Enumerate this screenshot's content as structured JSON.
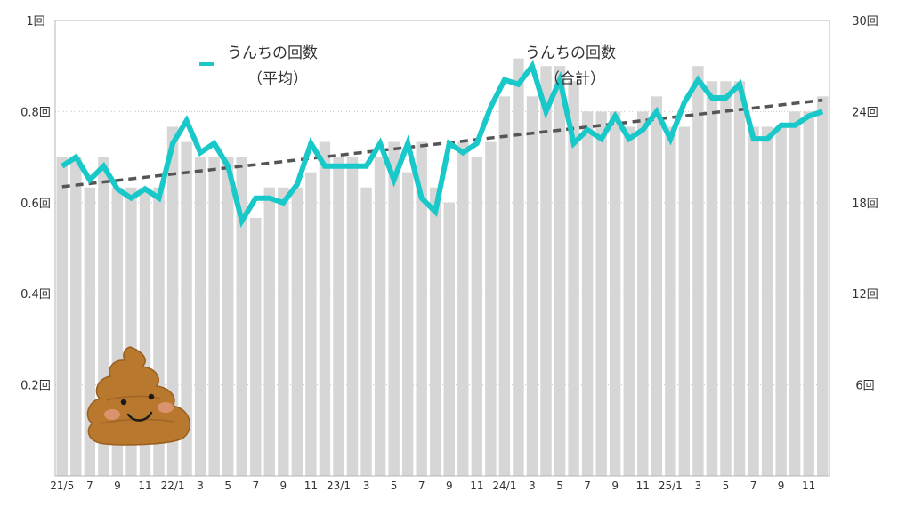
{
  "chart_data": {
    "type": "bar",
    "categories": [
      "21/5",
      "6",
      "7",
      "8",
      "9",
      "10",
      "11",
      "12",
      "22/1",
      "2",
      "3",
      "4",
      "5",
      "6",
      "7",
      "8",
      "9",
      "10",
      "11",
      "12",
      "23/1",
      "2",
      "3",
      "4",
      "5",
      "6",
      "7",
      "8",
      "9",
      "10",
      "11",
      "12",
      "24/1",
      "2",
      "3",
      "4",
      "5",
      "6",
      "7",
      "8",
      "9",
      "10",
      "11",
      "12",
      "25/1",
      "2",
      "3",
      "4",
      "5",
      "6",
      "7",
      "8",
      "9",
      "10",
      "11",
      "12"
    ],
    "x_tick_labels": [
      "21/5",
      "7",
      "9",
      "11",
      "22/1",
      "3",
      "5",
      "7",
      "9",
      "11",
      "23/1",
      "3",
      "5",
      "7",
      "9",
      "11",
      "24/1",
      "3",
      "5",
      "7",
      "9",
      "11",
      "25/1",
      "3",
      "5",
      "7",
      "9",
      "11"
    ],
    "y_left_ticks": [
      "0.2回",
      "0.4回",
      "0.6回",
      "0.8回",
      "1回"
    ],
    "y_right_ticks": [
      "6回",
      "12回",
      "18回",
      "24回",
      "30回"
    ],
    "ylim_left": [
      0,
      1
    ],
    "ylim_right": [
      0,
      30
    ],
    "series": [
      {
        "name": "うんちの回数（合計）",
        "axis": "right",
        "type": "bar",
        "color": "#d6d6d6",
        "values": [
          21,
          21,
          19,
          21,
          19,
          19,
          19,
          19,
          23,
          22,
          21,
          21,
          21,
          21,
          17,
          19,
          19,
          19,
          20,
          22,
          21,
          21,
          19,
          21,
          22,
          20,
          22,
          19,
          18,
          22,
          21,
          22,
          25,
          27.5,
          25,
          27,
          27,
          26,
          24,
          24,
          24,
          23,
          24,
          25,
          23,
          23,
          27,
          26,
          26,
          26,
          23,
          23,
          23,
          24,
          24,
          25
        ]
      },
      {
        "name": "うんちの回数（平均）",
        "axis": "left",
        "type": "line",
        "color": "#19c8c8",
        "values": [
          0.68,
          0.7,
          0.65,
          0.68,
          0.63,
          0.61,
          0.63,
          0.61,
          0.73,
          0.78,
          0.71,
          0.73,
          0.68,
          0.56,
          0.61,
          0.61,
          0.6,
          0.64,
          0.73,
          0.68,
          0.68,
          0.68,
          0.68,
          0.73,
          0.65,
          0.73,
          0.61,
          0.58,
          0.73,
          0.71,
          0.73,
          0.81,
          0.87,
          0.86,
          0.9,
          0.8,
          0.87,
          0.73,
          0.76,
          0.74,
          0.79,
          0.74,
          0.76,
          0.8,
          0.74,
          0.82,
          0.87,
          0.83,
          0.83,
          0.86,
          0.74,
          0.74,
          0.77,
          0.77,
          0.79,
          0.8
        ]
      }
    ],
    "trendline": {
      "style": "dashed",
      "color": "#555555",
      "start": 0.635,
      "end": 0.825,
      "axis": "left"
    },
    "grid": true,
    "legend": {
      "placement": "top"
    }
  },
  "legend": {
    "avg_line1": "うんちの回数",
    "avg_line2": "（平均）",
    "total_line1": "うんちの回数",
    "total_line2": "（合計）"
  },
  "decoration": {
    "icon": "poop-icon"
  }
}
